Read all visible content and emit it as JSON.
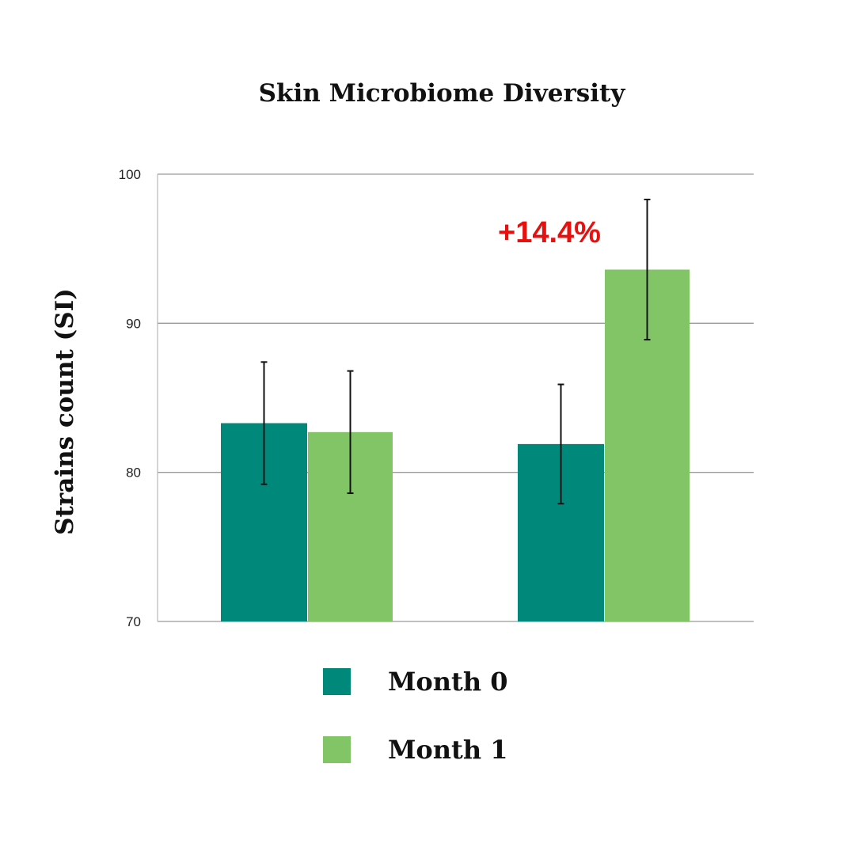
{
  "chart_data": {
    "type": "bar",
    "title": "Skin Microbiome Diversity",
    "xlabel": "",
    "ylabel": "Strains count (SI)",
    "ylim": [
      70,
      100
    ],
    "yticks": [
      70,
      80,
      90,
      100
    ],
    "grid": true,
    "legend_placement": "bottom-center",
    "categories": [
      "",
      ""
    ],
    "series": [
      {
        "name": "Month 0",
        "color": "#00897b",
        "values": [
          83.3,
          81.9
        ],
        "error": [
          4.1,
          4.0
        ]
      },
      {
        "name": "Month 1",
        "color": "#82c566",
        "values": [
          82.7,
          93.6
        ],
        "error": [
          4.1,
          4.7
        ]
      }
    ],
    "annotations": [
      {
        "text": "+14.4%",
        "category_index": 1,
        "color": "#e8100f"
      }
    ]
  }
}
